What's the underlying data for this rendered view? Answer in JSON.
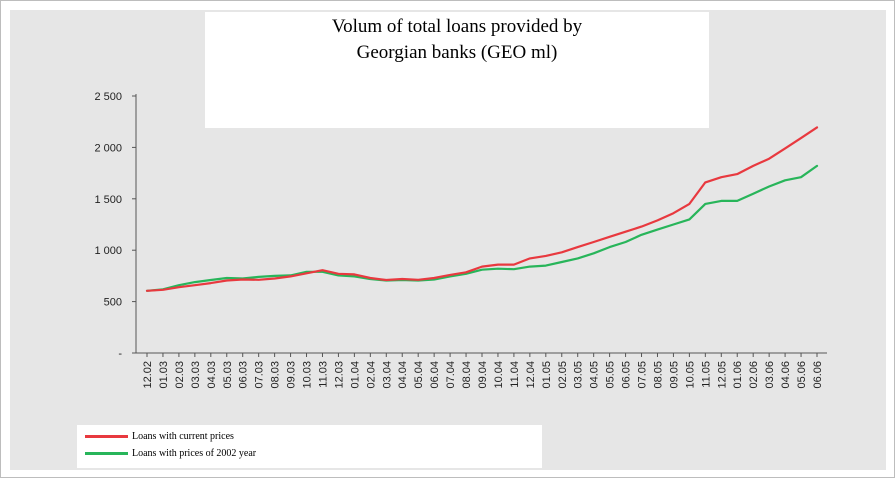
{
  "chart_data": {
    "type": "line",
    "title": "Volum of total loans provided by",
    "subtitle": "Georgian banks (GEO ml)",
    "xlabel": "",
    "ylabel": "",
    "ylim": [
      0,
      2500
    ],
    "y_ticks": [
      {
        "value": 0,
        "label": "-"
      },
      {
        "value": 500,
        "label": "500"
      },
      {
        "value": 1000,
        "label": "1 000"
      },
      {
        "value": 1500,
        "label": "1 500"
      },
      {
        "value": 2000,
        "label": "2 000"
      },
      {
        "value": 2500,
        "label": "2 500"
      }
    ],
    "grid": false,
    "legend_position": "bottom-left",
    "categories": [
      "12.02",
      "01.03",
      "02.03",
      "03.03",
      "04.03",
      "05.03",
      "06.03",
      "07.03",
      "08.03",
      "09.03",
      "10.03",
      "11.03",
      "12.03",
      "01.04",
      "02.04",
      "03.04",
      "04.04",
      "05.04",
      "06.04",
      "07.04",
      "08.04",
      "09.04",
      "10.04",
      "11.04",
      "12.04",
      "01.05",
      "02.05",
      "03.05",
      "04.05",
      "05.05",
      "06.05",
      "07.05",
      "08.05",
      "09.05",
      "10.05",
      "11.05",
      "12.05",
      "01.06",
      "02.06",
      "03.06",
      "04.06",
      "05.06",
      "06.06"
    ],
    "series": [
      {
        "name": "Loans with current prices",
        "color": "#e8393f",
        "values": [
          605,
          615,
          640,
          660,
          680,
          705,
          715,
          712,
          725,
          745,
          775,
          805,
          770,
          765,
          730,
          710,
          720,
          712,
          730,
          760,
          785,
          840,
          860,
          860,
          920,
          945,
          980,
          1030,
          1080,
          1130,
          1180,
          1230,
          1290,
          1360,
          1450,
          1660,
          1710,
          1740,
          1820,
          1890,
          1990,
          2090,
          2195
        ]
      },
      {
        "name": "Loans with prices of 2002 year",
        "color": "#28b55a",
        "values": [
          605,
          620,
          660,
          690,
          710,
          730,
          725,
          740,
          750,
          755,
          790,
          790,
          755,
          745,
          720,
          705,
          710,
          705,
          715,
          745,
          770,
          810,
          820,
          815,
          840,
          850,
          885,
          920,
          970,
          1030,
          1080,
          1150,
          1200,
          1250,
          1300,
          1450,
          1480,
          1480,
          1550,
          1620,
          1680,
          1710,
          1820
        ]
      }
    ]
  }
}
